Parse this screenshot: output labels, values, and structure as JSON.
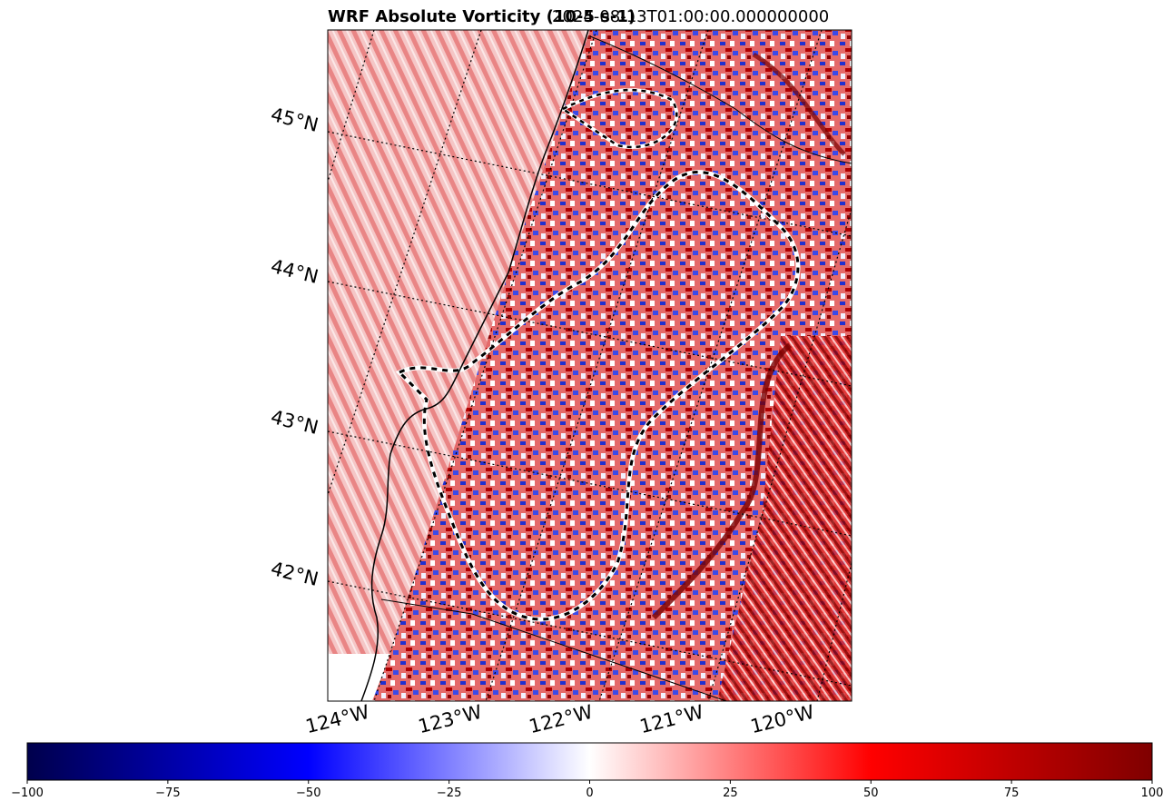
{
  "title": {
    "left": "WRF Absolute Vorticity (10-5 s-1)",
    "right": "2024-08-13T01:00:00.000000000"
  },
  "map": {
    "latitude_labels": [
      "45°N",
      "44°N",
      "43°N",
      "42°N"
    ],
    "longitude_labels": [
      "124°W",
      "123°W",
      "122°W",
      "121°W",
      "120°W"
    ],
    "field": "absolute vorticity",
    "colormap": "seismic",
    "gridlines": "dotted",
    "contours": "dashed black/white"
  },
  "colorbar": {
    "min": -100,
    "max": 100,
    "ticks": [
      "−100",
      "−75",
      "−50",
      "−25",
      "0",
      "25",
      "50",
      "75",
      "100"
    ],
    "colors": [
      "#00004c",
      "#0000ff",
      "#ffffff",
      "#ff0000",
      "#7f0000"
    ]
  }
}
